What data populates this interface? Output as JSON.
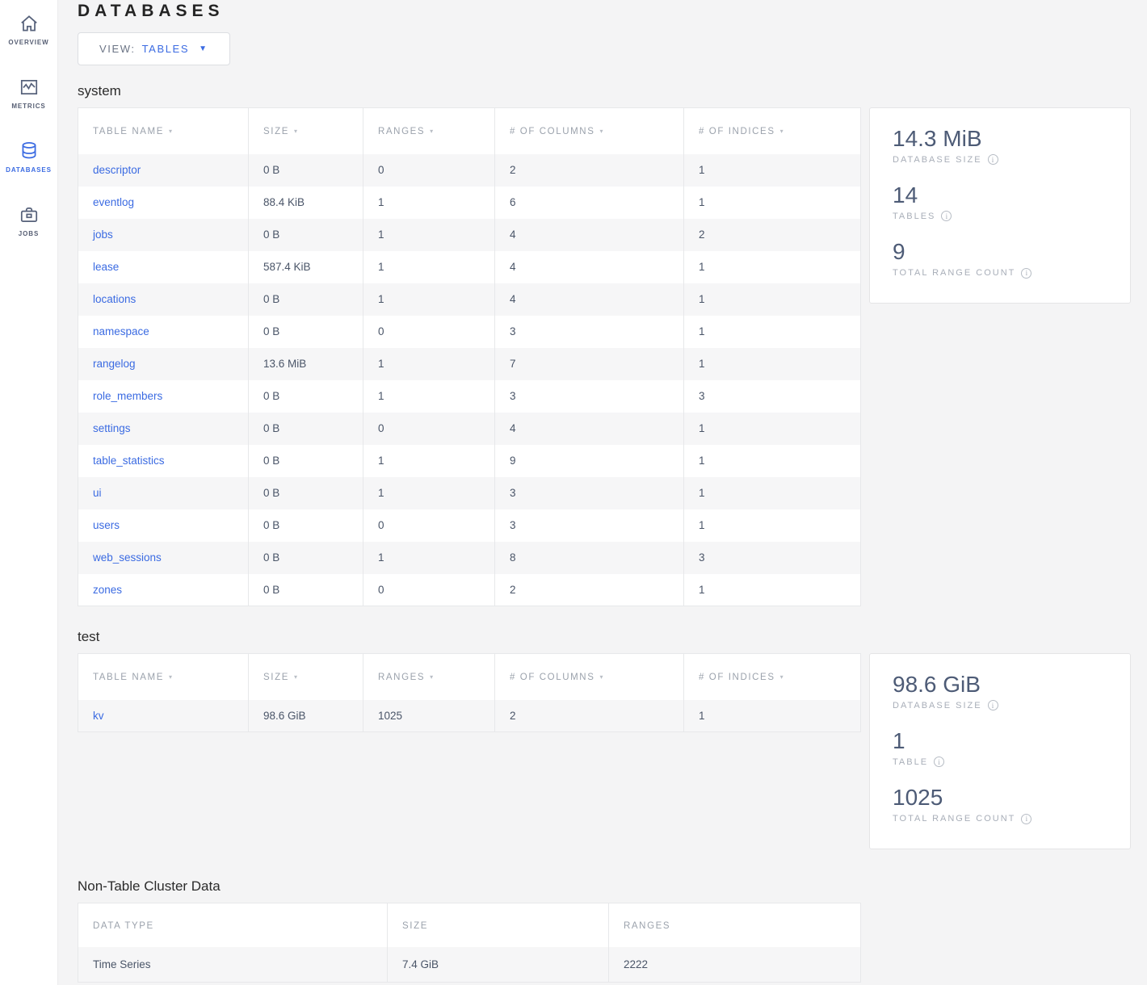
{
  "colors": {
    "accent_blue": "#3b6be2",
    "link_blue": "#3b6be2",
    "stat_value": "#4d5b76",
    "page_background": "#f4f4f5",
    "row_stripe": "#f6f6f7"
  },
  "sidebar": {
    "items": [
      {
        "label": "OVERVIEW",
        "icon": "home-icon",
        "active": false
      },
      {
        "label": "METRICS",
        "icon": "metrics-icon",
        "active": false
      },
      {
        "label": "DATABASES",
        "icon": "databases-icon",
        "active": true
      },
      {
        "label": "JOBS",
        "icon": "jobs-icon",
        "active": false
      }
    ]
  },
  "header": {
    "title": "DATABASES"
  },
  "view_selector": {
    "label": "VIEW:",
    "value": "TABLES",
    "caret": "▼"
  },
  "table_columns": [
    "TABLE NAME",
    "SIZE",
    "RANGES",
    "# OF COLUMNS",
    "# OF INDICES"
  ],
  "sort_caret": "▾",
  "info_glyph": "i",
  "databases": [
    {
      "name": "system",
      "rows": [
        [
          "descriptor",
          "0 B",
          "0",
          "2",
          "1"
        ],
        [
          "eventlog",
          "88.4 KiB",
          "1",
          "6",
          "1"
        ],
        [
          "jobs",
          "0 B",
          "1",
          "4",
          "2"
        ],
        [
          "lease",
          "587.4 KiB",
          "1",
          "4",
          "1"
        ],
        [
          "locations",
          "0 B",
          "1",
          "4",
          "1"
        ],
        [
          "namespace",
          "0 B",
          "0",
          "3",
          "1"
        ],
        [
          "rangelog",
          "13.6 MiB",
          "1",
          "7",
          "1"
        ],
        [
          "role_members",
          "0 B",
          "1",
          "3",
          "3"
        ],
        [
          "settings",
          "0 B",
          "0",
          "4",
          "1"
        ],
        [
          "table_statistics",
          "0 B",
          "1",
          "9",
          "1"
        ],
        [
          "ui",
          "0 B",
          "1",
          "3",
          "1"
        ],
        [
          "users",
          "0 B",
          "0",
          "3",
          "1"
        ],
        [
          "web_sessions",
          "0 B",
          "1",
          "8",
          "3"
        ],
        [
          "zones",
          "0 B",
          "0",
          "2",
          "1"
        ]
      ],
      "summary": [
        {
          "value": "14.3 MiB",
          "label": "DATABASE SIZE"
        },
        {
          "value": "14",
          "label": "TABLES"
        },
        {
          "value": "9",
          "label": "TOTAL RANGE COUNT"
        }
      ]
    },
    {
      "name": "test",
      "rows": [
        [
          "kv",
          "98.6 GiB",
          "1025",
          "2",
          "1"
        ]
      ],
      "summary": [
        {
          "value": "98.6 GiB",
          "label": "DATABASE SIZE"
        },
        {
          "value": "1",
          "label": "TABLE"
        },
        {
          "value": "1025",
          "label": "TOTAL RANGE COUNT"
        }
      ]
    }
  ],
  "non_table": {
    "title": "Non-Table Cluster Data",
    "columns": [
      "DATA TYPE",
      "SIZE",
      "RANGES"
    ],
    "rows": [
      [
        "Time Series",
        "7.4 GiB",
        "2222"
      ]
    ]
  }
}
